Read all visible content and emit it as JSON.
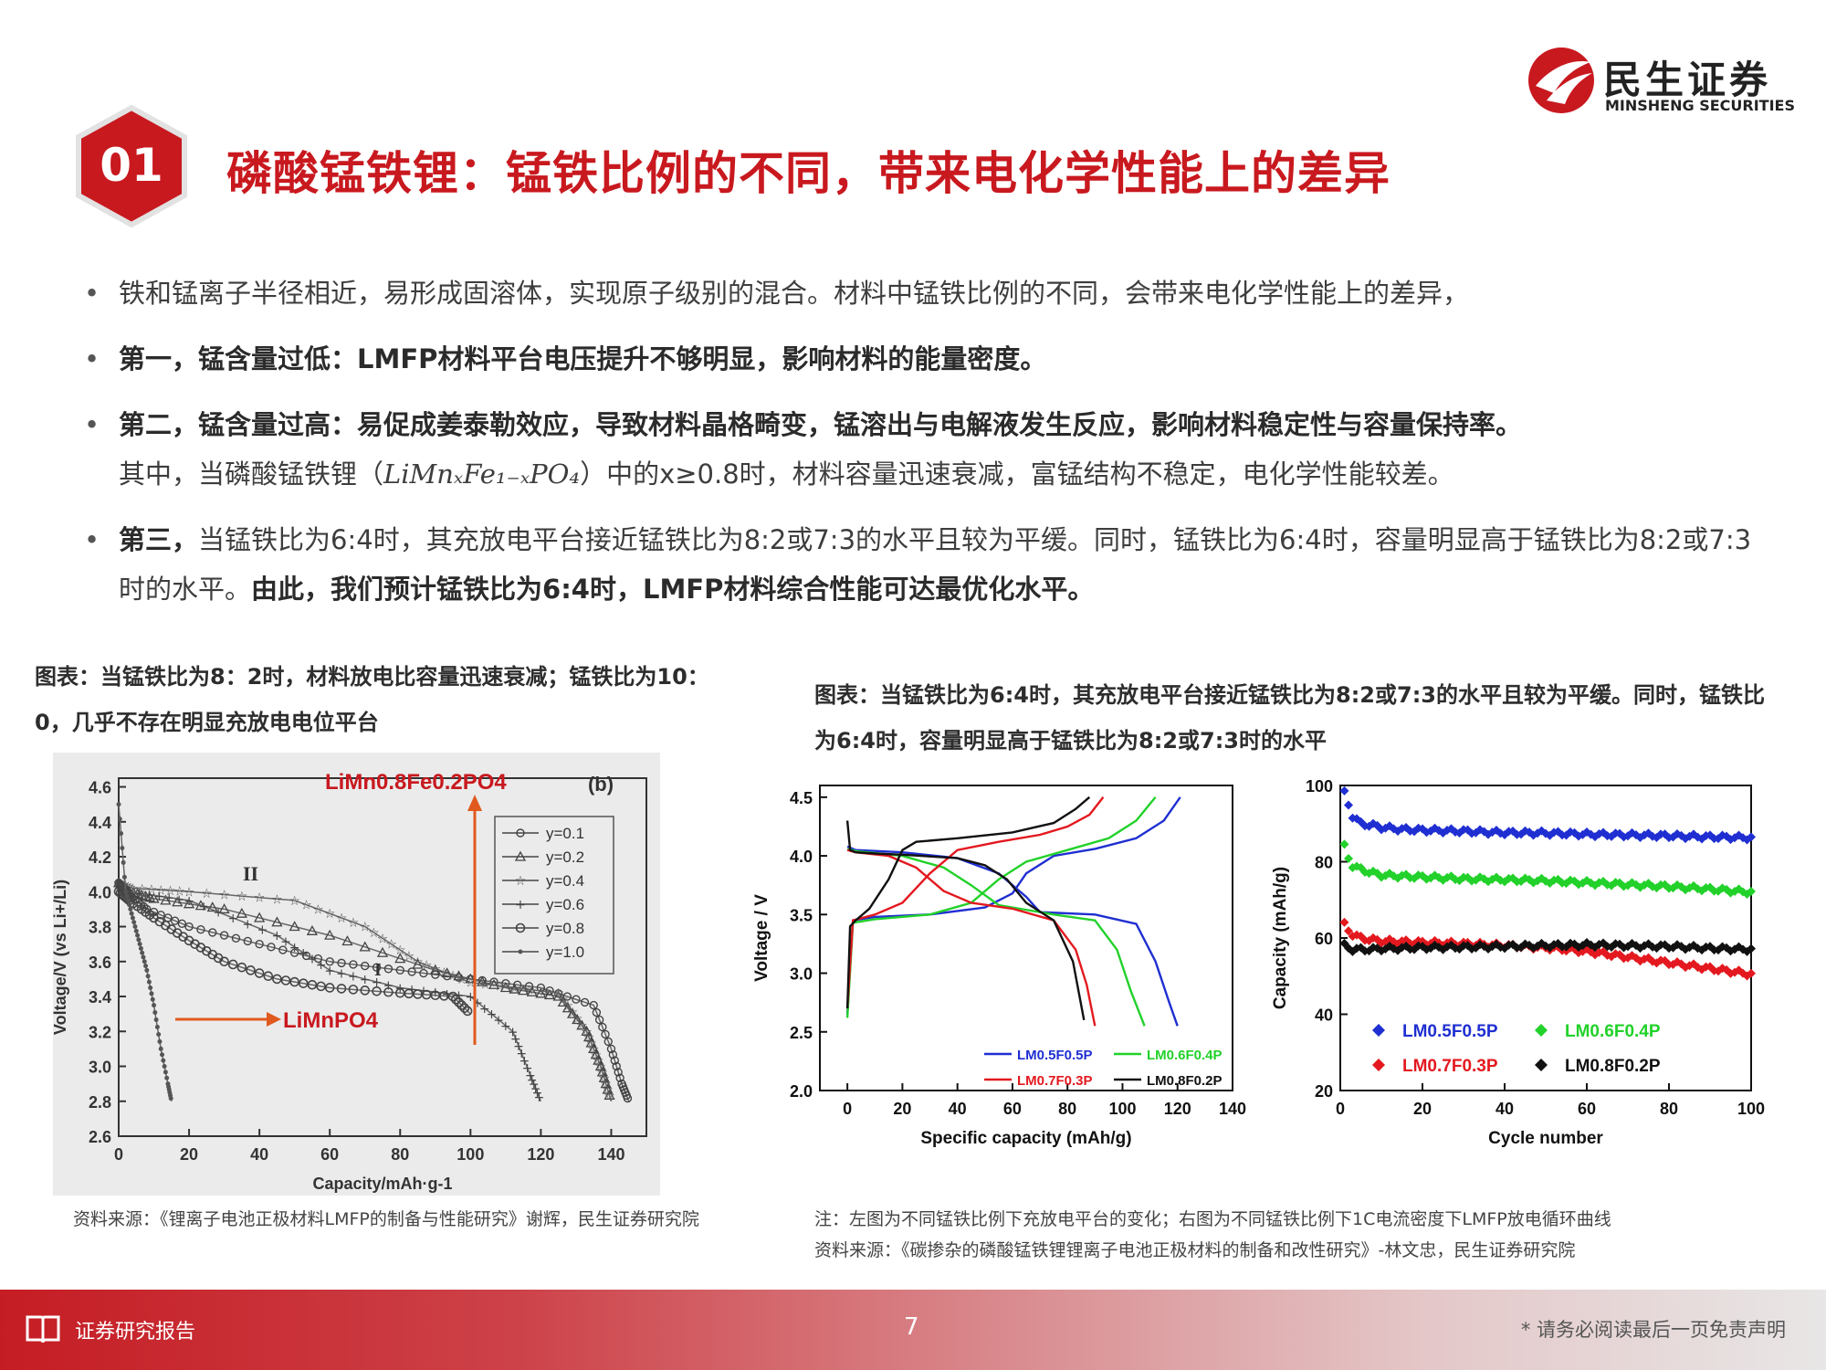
{
  "header": {
    "section_number": "01",
    "title": "磷酸锰铁锂：锰铁比例的不同，带来电化学性能上的差异",
    "logo_cn": "民生证券",
    "logo_en": "MINSHENG SECURITIES",
    "brand_color": "#c8191f"
  },
  "bullets": {
    "b1": "铁和锰离子半径相近，易形成固溶体，实现原子级别的混合。材料中锰铁比例的不同，会带来电化学性能上的差异，",
    "b2_bold": "第一，锰含量过低：LMFP材料平台电压提升不够明显，影响材料的能量密度。",
    "b3_bold": "第二，锰含量过高：易促成姜泰勒效应，导致材料晶格畸变，锰溶出与电解液发生反应，影响材料稳定性与容量保持率。",
    "b3_pre": "其中，当磷酸锰铁锂（",
    "b3_formula": "LiMnₓFe₁₋ₓPO₄",
    "b3_post": "）中的x≥0.8时，材料容量迅速衰减，富锰结构不稳定，电化学性能较差。",
    "b4_bold1": "第三，",
    "b4_mid": "当锰铁比为6:4时，其充放电平台接近锰铁比为8:2或7:3的水平且较为平缓。同时，锰铁比为6:4时，容量明显高于锰铁比为8:2或7:3时的水平。",
    "b4_bold2": "由此，我们预计锰铁比为6:4时，LMFP材料综合性能可达最优化水平。"
  },
  "left_figure": {
    "caption": "图表：当锰铁比为8：2时，材料放电比容量迅速衰减；锰铁比为10：0，几乎不存在明显充放电电位平台",
    "source": "资料来源：《锂离子电池正极材料LMFP的制备与性能研究》谢辉，民生证券研究院",
    "annotation_top": "LiMn0.8Fe0.2PO4",
    "annotation_left": "LiMnPO4",
    "panel_label": "(b)",
    "marker_I": "I",
    "marker_II": "II"
  },
  "right_figure": {
    "caption": "图表：当锰铁比为6:4时，其充放电平台接近锰铁比为8:2或7:3的水平且较为平缓。同时，锰铁比为6:4时，容量明显高于锰铁比为8:2或7:3时的水平",
    "note": "注：左图为不同锰铁比例下充放电平台的变化；右图为不同锰铁比例下1C电流密度下LMFP放电循环曲线",
    "source": "资料来源：《碳掺杂的磷酸锰铁锂锂离子电池正极材料的制备和改性研究》-林文忠，民生证券研究院"
  },
  "chart_data": [
    {
      "type": "line",
      "panel": "(b)",
      "xlabel": "Capacity/mAh·g-1",
      "ylabel": "Voltage/V (vs Li+/Li)",
      "xlim": [
        0,
        150
      ],
      "ylim": [
        2.6,
        4.65
      ],
      "xticks": [
        0,
        20,
        40,
        60,
        80,
        100,
        120,
        140
      ],
      "yticks": [
        2.6,
        2.8,
        3.0,
        3.2,
        3.4,
        3.6,
        3.8,
        4.0,
        4.2,
        4.4,
        4.6
      ],
      "legend_position": "top-right",
      "series": [
        {
          "name": "y=0.1",
          "marker": "circle",
          "x": [
            0,
            3,
            8,
            20,
            40,
            60,
            80,
            100,
            120,
            135,
            140,
            143,
            145
          ],
          "y": [
            4.05,
            3.98,
            3.9,
            3.8,
            3.7,
            3.6,
            3.55,
            3.5,
            3.45,
            3.35,
            3.1,
            2.9,
            2.8
          ]
        },
        {
          "name": "y=0.2",
          "marker": "triangle",
          "x": [
            0,
            3,
            10,
            30,
            60,
            90,
            110,
            125,
            133,
            137,
            140
          ],
          "y": [
            4.05,
            4.0,
            3.96,
            3.9,
            3.75,
            3.55,
            3.45,
            3.4,
            3.2,
            3.0,
            2.8
          ]
        },
        {
          "name": "y=0.4",
          "marker": "star",
          "x": [
            0,
            4,
            20,
            50,
            70,
            85,
            100,
            125,
            133,
            137,
            140
          ],
          "y": [
            4.05,
            4.02,
            4.0,
            3.95,
            3.8,
            3.6,
            3.48,
            3.42,
            3.2,
            3.0,
            2.8
          ]
        },
        {
          "name": "y=0.6",
          "marker": "plus",
          "x": [
            0,
            3,
            20,
            45,
            60,
            80,
            100,
            112,
            117,
            120
          ],
          "y": [
            4.05,
            4.0,
            3.95,
            3.75,
            3.55,
            3.45,
            3.4,
            3.2,
            2.95,
            2.8
          ]
        },
        {
          "name": "y=0.8",
          "marker": "circle-cross",
          "x": [
            0,
            3,
            10,
            20,
            30,
            45,
            60,
            80,
            95,
            100
          ],
          "y": [
            4.0,
            3.95,
            3.85,
            3.72,
            3.6,
            3.5,
            3.45,
            3.42,
            3.4,
            3.3
          ]
        },
        {
          "name": "y=1.0",
          "marker": "dot",
          "x": [
            0,
            2,
            4,
            6,
            8,
            10,
            12,
            14,
            15
          ],
          "y": [
            4.5,
            4.0,
            3.85,
            3.7,
            3.55,
            3.35,
            3.1,
            2.9,
            2.8
          ]
        }
      ]
    },
    {
      "type": "line",
      "xlabel": "Specific capacity (mAh/g)",
      "ylabel": "Voltage / V",
      "xlim": [
        -10,
        140
      ],
      "ylim": [
        2.0,
        4.6
      ],
      "xticks": [
        0,
        20,
        40,
        60,
        80,
        100,
        120,
        140
      ],
      "yticks": [
        2.0,
        2.5,
        3.0,
        3.5,
        4.0,
        4.5
      ],
      "legend_position": "bottom-right",
      "series": [
        {
          "name": "LM0.5F0.5P",
          "color": "#1f2fd1",
          "charge": {
            "x": [
              0,
              2,
              10,
              30,
              50,
              60,
              65,
              75,
              90,
              105,
              115,
              121
            ],
            "y": [
              2.65,
              3.45,
              3.48,
              3.5,
              3.56,
              3.68,
              3.85,
              4.0,
              4.06,
              4.15,
              4.3,
              4.5
            ]
          },
          "discharge": {
            "x": [
              0,
              3,
              20,
              40,
              55,
              65,
              70,
              90,
              105,
              112,
              117,
              120
            ],
            "y": [
              4.08,
              4.05,
              4.03,
              3.98,
              3.85,
              3.65,
              3.52,
              3.5,
              3.42,
              3.1,
              2.75,
              2.55
            ]
          }
        },
        {
          "name": "LM0.6F0.4P",
          "color": "#22d12a",
          "charge": {
            "x": [
              0,
              2,
              10,
              30,
              45,
              55,
              65,
              80,
              95,
              105,
              112
            ],
            "y": [
              2.62,
              3.43,
              3.46,
              3.5,
              3.6,
              3.8,
              3.95,
              4.05,
              4.15,
              4.3,
              4.5
            ]
          },
          "discharge": {
            "x": [
              0,
              3,
              20,
              35,
              45,
              55,
              75,
              90,
              98,
              103,
              108
            ],
            "y": [
              4.06,
              4.04,
              4.0,
              3.9,
              3.75,
              3.58,
              3.5,
              3.45,
              3.2,
              2.85,
              2.55
            ]
          }
        },
        {
          "name": "LM0.7F0.3P",
          "color": "#e3191f",
          "charge": {
            "x": [
              0,
              2,
              10,
              20,
              30,
              40,
              55,
              70,
              80,
              88,
              93
            ],
            "y": [
              2.7,
              3.45,
              3.5,
              3.6,
              3.85,
              4.05,
              4.12,
              4.18,
              4.25,
              4.35,
              4.5
            ]
          },
          "discharge": {
            "x": [
              0,
              3,
              15,
              25,
              35,
              45,
              60,
              75,
              83,
              87,
              90
            ],
            "y": [
              4.05,
              4.03,
              4.0,
              3.9,
              3.7,
              3.6,
              3.55,
              3.45,
              3.2,
              2.9,
              2.55
            ]
          }
        },
        {
          "name": "LM0.8F0.2P",
          "color": "#111111",
          "charge": {
            "x": [
              0,
              1,
              3,
              8,
              15,
              20,
              25,
              40,
              60,
              75,
              83,
              88
            ],
            "y": [
              2.7,
              3.4,
              3.45,
              3.55,
              3.8,
              4.05,
              4.12,
              4.15,
              4.2,
              4.28,
              4.4,
              4.5
            ]
          },
          "discharge": {
            "x": [
              0,
              1,
              3,
              10,
              20,
              40,
              50,
              58,
              65,
              75,
              82,
              86
            ],
            "y": [
              4.3,
              4.05,
              4.03,
              4.02,
              4.01,
              3.98,
              3.92,
              3.8,
              3.6,
              3.45,
              3.1,
              2.6
            ]
          }
        }
      ]
    },
    {
      "type": "scatter",
      "xlabel": "Cycle number",
      "ylabel": "Capacity (mAh/g)",
      "xlim": [
        0,
        100
      ],
      "ylim": [
        20,
        100
      ],
      "xticks": [
        0,
        20,
        40,
        60,
        80,
        100
      ],
      "yticks": [
        20,
        40,
        60,
        80,
        100
      ],
      "legend_position": "bottom-right",
      "series": [
        {
          "name": "LM0.5F0.5P",
          "color": "#1f2fd1",
          "x": [
            1,
            2,
            3,
            5,
            8,
            10,
            15,
            20,
            30,
            40,
            50,
            60,
            70,
            80,
            90,
            100
          ],
          "y": [
            98,
            95,
            92,
            90,
            89.5,
            89,
            88.5,
            88.3,
            88,
            87.6,
            87.5,
            87.2,
            87,
            86.8,
            86.5,
            86.3
          ]
        },
        {
          "name": "LM0.6F0.4P",
          "color": "#22d12a",
          "x": [
            1,
            2,
            3,
            5,
            8,
            10,
            15,
            20,
            30,
            40,
            50,
            60,
            70,
            80,
            90,
            100
          ],
          "y": [
            84,
            81,
            79,
            78,
            77,
            76.5,
            76.2,
            76,
            75.5,
            75.3,
            75,
            74.5,
            74,
            73.5,
            72.8,
            72
          ]
        },
        {
          "name": "LM0.7F0.3P",
          "color": "#e3191f",
          "x": [
            1,
            2,
            3,
            5,
            8,
            10,
            15,
            20,
            30,
            40,
            50,
            60,
            70,
            80,
            90,
            100
          ],
          "y": [
            63.5,
            62,
            61,
            60,
            59.5,
            59.2,
            59,
            58.8,
            58.5,
            58,
            57.5,
            56.5,
            55,
            53.5,
            52,
            50.5
          ]
        },
        {
          "name": "LM0.8F0.2P",
          "color": "#111111",
          "x": [
            1,
            2,
            3,
            5,
            8,
            10,
            15,
            20,
            30,
            40,
            50,
            60,
            70,
            80,
            90,
            100
          ],
          "y": [
            58,
            57.5,
            57,
            57,
            57,
            57.2,
            57.3,
            57.5,
            57.6,
            57.8,
            58,
            58.2,
            58,
            57.8,
            57.3,
            57
          ]
        }
      ]
    }
  ],
  "footer": {
    "label": "证券研究报告",
    "page": "7",
    "disclaimer": "* 请务必阅读最后一页免责声明"
  }
}
